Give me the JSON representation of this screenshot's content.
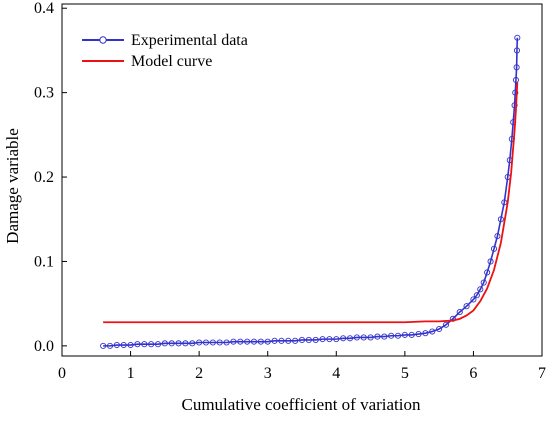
{
  "chart_data": {
    "type": "line",
    "title": "",
    "xlabel": "Cumulative coefficient of variation",
    "ylabel": "Damage  variable",
    "xlim": [
      0,
      7
    ],
    "ylim": [
      -0.012,
      0.405
    ],
    "xticks": [
      0,
      1,
      2,
      3,
      4,
      5,
      6,
      7
    ],
    "xtick_labels": [
      "0",
      "1",
      "2",
      "3",
      "4",
      "5",
      "6",
      "7"
    ],
    "yticks": [
      0.0,
      0.1,
      0.2,
      0.3,
      0.4
    ],
    "ytick_labels": [
      "0.0",
      "0.1",
      "0.2",
      "0.3",
      "0.4"
    ],
    "grid": false,
    "legend_position": "top-left",
    "series": [
      {
        "name": "Experimental data",
        "style": "line-with-open-circle-markers",
        "color": "#3333cc",
        "x": [
          0.6,
          0.7,
          0.8,
          0.9,
          1.0,
          1.1,
          1.2,
          1.3,
          1.4,
          1.5,
          1.6,
          1.7,
          1.8,
          1.9,
          2.0,
          2.1,
          2.2,
          2.3,
          2.4,
          2.5,
          2.6,
          2.7,
          2.8,
          2.9,
          3.0,
          3.1,
          3.2,
          3.3,
          3.4,
          3.5,
          3.6,
          3.7,
          3.8,
          3.9,
          4.0,
          4.1,
          4.2,
          4.3,
          4.4,
          4.5,
          4.6,
          4.7,
          4.8,
          4.9,
          5.0,
          5.1,
          5.2,
          5.3,
          5.4,
          5.5,
          5.6,
          5.7,
          5.8,
          5.9,
          6.0,
          6.05,
          6.1,
          6.15,
          6.2,
          6.25,
          6.3,
          6.35,
          6.4,
          6.45,
          6.5,
          6.53,
          6.56,
          6.58,
          6.6,
          6.61,
          6.62,
          6.63,
          6.635,
          6.64
        ],
        "y": [
          0.0,
          0.0,
          0.001,
          0.001,
          0.001,
          0.002,
          0.002,
          0.002,
          0.002,
          0.003,
          0.003,
          0.003,
          0.003,
          0.003,
          0.004,
          0.004,
          0.004,
          0.004,
          0.004,
          0.005,
          0.005,
          0.005,
          0.005,
          0.005,
          0.005,
          0.006,
          0.006,
          0.006,
          0.006,
          0.007,
          0.007,
          0.007,
          0.008,
          0.008,
          0.008,
          0.009,
          0.009,
          0.01,
          0.01,
          0.01,
          0.011,
          0.011,
          0.012,
          0.012,
          0.013,
          0.013,
          0.014,
          0.015,
          0.017,
          0.02,
          0.025,
          0.032,
          0.04,
          0.047,
          0.055,
          0.06,
          0.067,
          0.075,
          0.087,
          0.1,
          0.115,
          0.13,
          0.15,
          0.17,
          0.2,
          0.22,
          0.245,
          0.265,
          0.285,
          0.3,
          0.315,
          0.33,
          0.35,
          0.365
        ]
      },
      {
        "name": "Model curve",
        "style": "line",
        "color": "#ee1111",
        "x": [
          0.6,
          1.0,
          2.0,
          3.0,
          4.0,
          4.5,
          5.0,
          5.3,
          5.5,
          5.7,
          5.8,
          5.9,
          6.0,
          6.1,
          6.2,
          6.3,
          6.4,
          6.5,
          6.55,
          6.6,
          6.62,
          6.64
        ],
        "y": [
          0.028,
          0.028,
          0.028,
          0.028,
          0.028,
          0.028,
          0.028,
          0.029,
          0.029,
          0.03,
          0.032,
          0.036,
          0.042,
          0.053,
          0.068,
          0.09,
          0.122,
          0.17,
          0.205,
          0.255,
          0.28,
          0.312
        ]
      }
    ]
  }
}
